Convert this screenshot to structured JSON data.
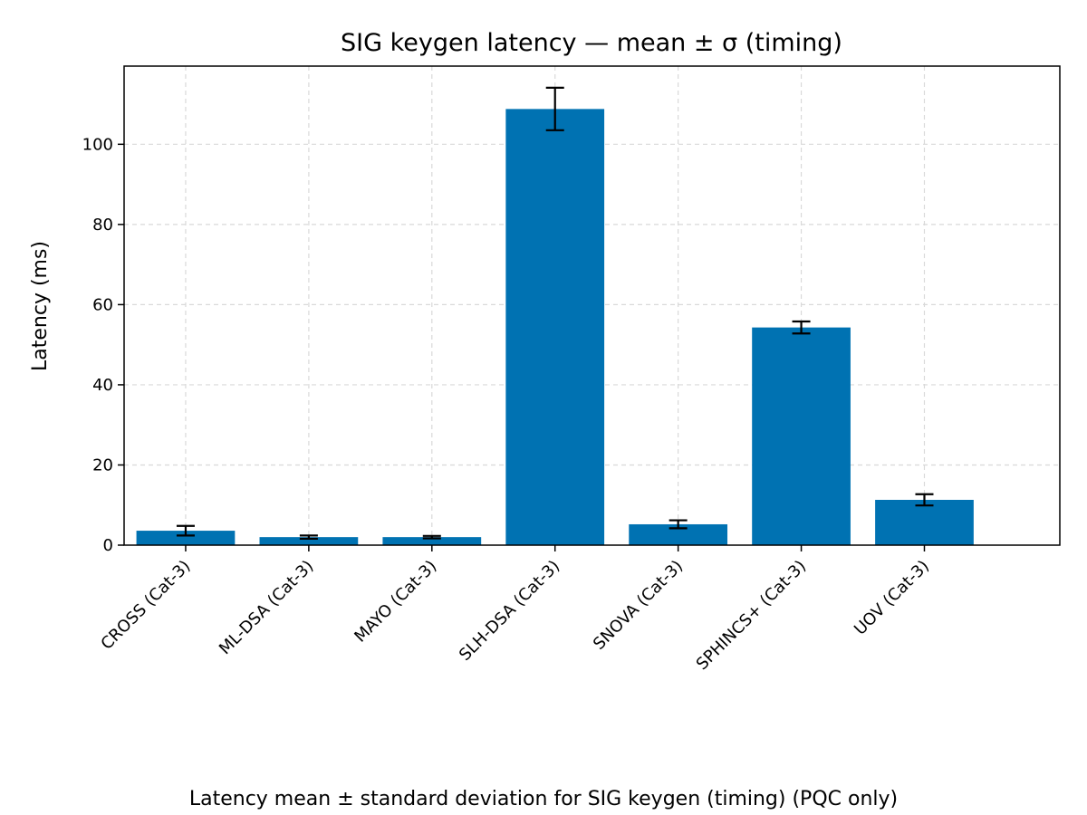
{
  "chart_data": {
    "type": "bar",
    "title": "SIG keygen latency — mean ± σ (timing)",
    "xlabel": "",
    "ylabel": "Latency (ms)",
    "caption": "Latency mean ± standard deviation for SIG keygen (timing) (PQC only)",
    "categories": [
      "CROSS (Cat-3)",
      "ML-DSA (Cat-3)",
      "MAYO (Cat-3)",
      "SLH-DSA (Cat-3)",
      "SNOVA (Cat-3)",
      "SPHINCS+ (Cat-3)",
      "UOV (Cat-3)"
    ],
    "values": [
      3.6,
      2.0,
      2.0,
      108.8,
      5.2,
      54.3,
      11.3
    ],
    "errors": [
      1.2,
      0.4,
      0.3,
      5.3,
      1.0,
      1.5,
      1.4
    ],
    "yticks": [
      0,
      20,
      40,
      60,
      80,
      100
    ],
    "ylim": [
      0,
      119.5
    ],
    "grid": true,
    "colors": {
      "bar": "#0072B2",
      "error_bar": "#000000",
      "grid": "#d9d9d9"
    }
  }
}
